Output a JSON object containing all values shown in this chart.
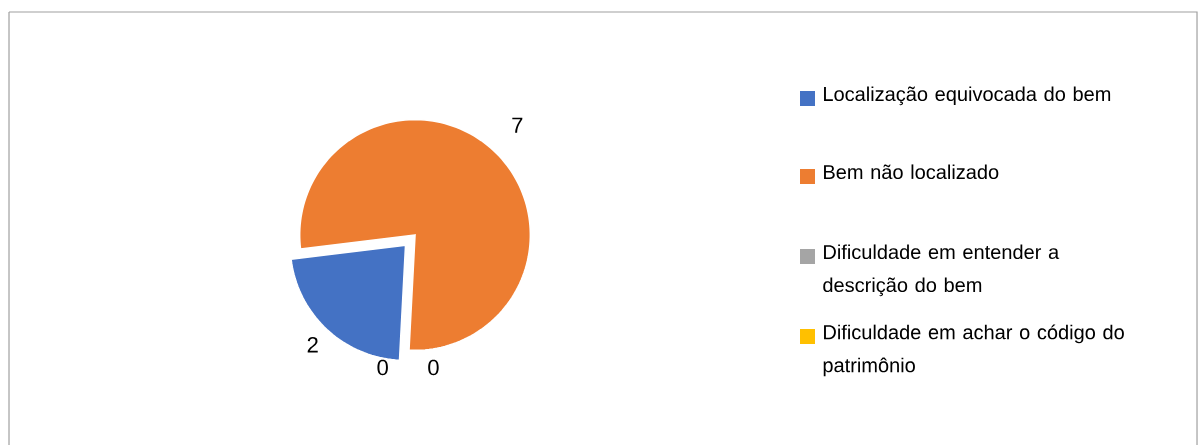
{
  "chart_data": {
    "type": "pie",
    "categories": [
      "Localização equivocada do bem",
      "Bem não localizado",
      "Dificuldade em entender a descrição do bem",
      "Dificuldade em achar o código do patrimônio"
    ],
    "values": [
      2,
      7,
      0,
      0
    ],
    "colors": [
      "#4472c4",
      "#ed7d31",
      "#a5a5a5",
      "#ffc000"
    ],
    "value_labels": [
      "2",
      "7",
      "0",
      "0"
    ],
    "legend": "right"
  }
}
